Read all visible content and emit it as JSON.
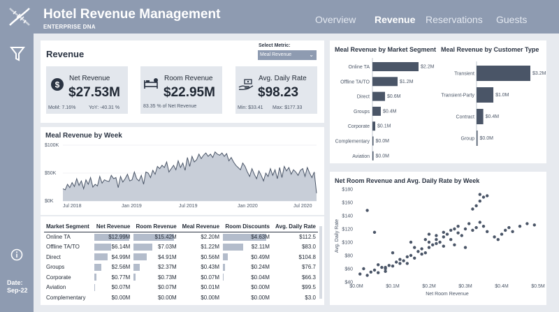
{
  "app": {
    "title": "Hotel Revenue Management",
    "subtitle": "ENTERPRISE DNA"
  },
  "nav": [
    {
      "label": "Overview",
      "active": false
    },
    {
      "label": "Revenue",
      "active": true
    },
    {
      "label": "Reservations",
      "active": false
    },
    {
      "label": "Guests",
      "active": false
    }
  ],
  "sidebar": {
    "date_label": "Date:",
    "date_value": "Sep-22",
    "icons": [
      "filter-icon",
      "info-icon"
    ]
  },
  "revenue_section": {
    "title": "Revenue",
    "select_label": "Select Metric:",
    "select_value": "Meal Revenue"
  },
  "kpis": {
    "net": {
      "label": "Net Revenue",
      "value": "$27.53M",
      "mom": "MoM: 7.16%",
      "yoy": "YoY: -40.31 %",
      "icon": "dollar-icon"
    },
    "room": {
      "label": "Room Revenue",
      "value": "$22.95M",
      "note": "83.35 % of Net Revenue",
      "icon": "bed-icon"
    },
    "adr": {
      "label": "Avg. Daily Rate",
      "value": "$98.23",
      "min": "Min: $33.41",
      "max": "Max: $177.33",
      "icon": "hand-money-icon"
    }
  },
  "weekly_title": "Meal Revenue by Week",
  "market_title": "Meal Revenue by Market Segment",
  "customer_title": "Meal Revenue by Customer Type",
  "scatter_title": "Net Room Revenue and Avg. Daily Rate by Week",
  "table": {
    "headers": [
      "Market Segment",
      "Net Revenue",
      "Room Revenue",
      "Meal Revenue",
      "Room Discounts",
      "Avg. Daily Rate"
    ],
    "rows": [
      {
        "segment": "Online TA",
        "net": "$12.99M",
        "room": "$15.42M",
        "meal": "$2.20M",
        "disc": "$4.63M",
        "adr": "$112.5",
        "net_frac": 1.0,
        "room_frac": 1.0,
        "disc_frac": 1.0
      },
      {
        "segment": "Offline TA/TO",
        "net": "$6.14M",
        "room": "$7.03M",
        "meal": "$1.22M",
        "disc": "$2.11M",
        "adr": "$83.0",
        "net_frac": 0.47,
        "room_frac": 0.46,
        "disc_frac": 0.46
      },
      {
        "segment": "Direct",
        "net": "$4.99M",
        "room": "$4.91M",
        "meal": "$0.56M",
        "disc": "$0.49M",
        "adr": "$104.8",
        "net_frac": 0.38,
        "room_frac": 0.32,
        "disc_frac": 0.11
      },
      {
        "segment": "Groups",
        "net": "$2.56M",
        "room": "$2.37M",
        "meal": "$0.43M",
        "disc": "$0.24M",
        "adr": "$76.7",
        "net_frac": 0.2,
        "room_frac": 0.15,
        "disc_frac": 0.05
      },
      {
        "segment": "Corporate",
        "net": "$0.77M",
        "room": "$0.73M",
        "meal": "$0.07M",
        "disc": "$0.04M",
        "adr": "$66.3",
        "net_frac": 0.06,
        "room_frac": 0.05,
        "disc_frac": 0.01
      },
      {
        "segment": "Aviation",
        "net": "$0.07M",
        "room": "$0.07M",
        "meal": "$0.01M",
        "disc": "$0.00M",
        "adr": "$99.5",
        "net_frac": 0.01,
        "room_frac": 0.0,
        "disc_frac": 0.0
      },
      {
        "segment": "Complementary",
        "net": "$0.00M",
        "room": "$0.00M",
        "meal": "$0.00M",
        "disc": "$0.00M",
        "adr": "$3.0",
        "net_frac": 0.0,
        "room_frac": 0.0,
        "disc_frac": 0.0
      }
    ]
  },
  "chart_data": [
    {
      "type": "area",
      "title": "Meal Revenue by Week",
      "ylim": [
        0,
        100
      ],
      "y_unit": "$K",
      "y_ticks": [
        "$100K",
        "$50K",
        "$0K"
      ],
      "x_ticks": [
        "Jul 2018",
        "Jan 2019",
        "Jul 2019",
        "Jan 2020",
        "Jul 2020"
      ],
      "values": [
        22,
        20,
        30,
        24,
        33,
        26,
        40,
        28,
        36,
        22,
        38,
        30,
        42,
        25,
        30,
        27,
        44,
        32,
        38,
        36,
        35,
        46,
        40,
        42,
        24,
        44,
        34,
        40,
        48,
        36,
        38,
        52,
        40,
        36,
        46,
        30,
        52,
        50,
        42,
        55,
        48,
        62,
        58,
        64,
        60,
        70,
        52,
        58,
        64,
        56,
        72,
        60,
        68,
        55,
        78,
        62,
        80,
        70,
        74,
        84,
        76,
        82,
        86,
        80,
        84,
        78,
        88,
        84,
        82,
        86,
        80,
        85,
        72,
        78,
        70,
        64,
        60,
        56,
        68,
        62,
        52,
        44,
        58,
        48,
        40,
        54,
        46,
        36,
        50,
        44,
        58,
        46,
        56,
        40,
        60,
        42,
        62,
        54,
        60,
        48,
        56,
        52,
        46,
        55,
        58,
        44,
        60,
        50,
        42,
        52,
        14
      ]
    },
    {
      "type": "bar",
      "title": "Meal Revenue by Market Segment",
      "orientation": "horizontal",
      "categories": [
        "Online TA",
        "Offline TA/TO",
        "Direct",
        "Groups",
        "Corporate",
        "Complementary",
        "Aviation"
      ],
      "values": [
        2.2,
        1.2,
        0.6,
        0.4,
        0.1,
        0.0,
        0.0
      ],
      "labels": [
        "$2.2M",
        "$1.2M",
        "$0.6M",
        "$0.4M",
        "$0.1M",
        "$0.0M",
        "$0.0M"
      ]
    },
    {
      "type": "bar",
      "title": "Meal Revenue by Customer Type",
      "orientation": "horizontal",
      "categories": [
        "Transient",
        "Transient-Party",
        "Contract",
        "Group"
      ],
      "values": [
        3.2,
        1.0,
        0.4,
        0.0
      ],
      "labels": [
        "$3.2M",
        "$1.0M",
        "$0.4M",
        "$0.0M"
      ]
    },
    {
      "type": "scatter",
      "title": "Net Room Revenue and Avg. Daily Rate by Week",
      "xlabel": "Net Room Revenue",
      "ylabel": "Avg. Daily Rate",
      "xlim": [
        0,
        0.5
      ],
      "ylim": [
        40,
        180
      ],
      "x_ticks": [
        "$0.0M",
        "$0.1M",
        "$0.2M",
        "$0.3M",
        "$0.4M",
        "$0.5M"
      ],
      "y_ticks": [
        "$180",
        "$160",
        "$140",
        "$120",
        "$100",
        "$80",
        "$60",
        "$40"
      ],
      "points": [
        [
          0.01,
          52
        ],
        [
          0.02,
          60
        ],
        [
          0.03,
          50
        ],
        [
          0.04,
          55
        ],
        [
          0.05,
          58
        ],
        [
          0.06,
          54
        ],
        [
          0.07,
          62
        ],
        [
          0.06,
          66
        ],
        [
          0.08,
          60
        ],
        [
          0.08,
          56
        ],
        [
          0.09,
          65
        ],
        [
          0.1,
          64
        ],
        [
          0.11,
          70
        ],
        [
          0.12,
          68
        ],
        [
          0.12,
          74
        ],
        [
          0.13,
          72
        ],
        [
          0.14,
          78
        ],
        [
          0.14,
          68
        ],
        [
          0.15,
          80
        ],
        [
          0.16,
          76
        ],
        [
          0.17,
          86
        ],
        [
          0.18,
          82
        ],
        [
          0.18,
          90
        ],
        [
          0.19,
          84
        ],
        [
          0.2,
          92
        ],
        [
          0.2,
          100
        ],
        [
          0.21,
          96
        ],
        [
          0.22,
          104
        ],
        [
          0.22,
          110
        ],
        [
          0.23,
          100
        ],
        [
          0.24,
          108
        ],
        [
          0.24,
          115
        ],
        [
          0.25,
          112
        ],
        [
          0.26,
          118
        ],
        [
          0.26,
          104
        ],
        [
          0.27,
          120
        ],
        [
          0.28,
          114
        ],
        [
          0.28,
          124
        ],
        [
          0.29,
          110
        ],
        [
          0.3,
          120
        ],
        [
          0.31,
          128
        ],
        [
          0.32,
          118
        ],
        [
          0.33,
          122
        ],
        [
          0.34,
          130
        ],
        [
          0.35,
          124
        ],
        [
          0.36,
          116
        ],
        [
          0.38,
          108
        ],
        [
          0.39,
          104
        ],
        [
          0.4,
          112
        ],
        [
          0.41,
          118
        ],
        [
          0.42,
          122
        ],
        [
          0.43,
          116
        ],
        [
          0.45,
          124
        ],
        [
          0.47,
          128
        ],
        [
          0.49,
          126
        ],
        [
          0.32,
          150
        ],
        [
          0.33,
          155
        ],
        [
          0.34,
          162
        ],
        [
          0.35,
          168
        ],
        [
          0.36,
          170
        ],
        [
          0.34,
          172
        ],
        [
          0.03,
          148
        ],
        [
          0.05,
          115
        ],
        [
          0.08,
          62
        ],
        [
          0.1,
          84
        ],
        [
          0.16,
          92
        ],
        [
          0.24,
          94
        ],
        [
          0.27,
          96
        ],
        [
          0.3,
          92
        ],
        [
          0.2,
          112
        ],
        [
          0.15,
          100
        ],
        [
          0.19,
          104
        ],
        [
          0.22,
          98
        ]
      ]
    }
  ],
  "colors": {
    "accent": "#8e9bb1",
    "bar": "#4a5567",
    "cellbar": "#b3bccb",
    "area": "#c8ced8",
    "dark": "#2a3342"
  }
}
